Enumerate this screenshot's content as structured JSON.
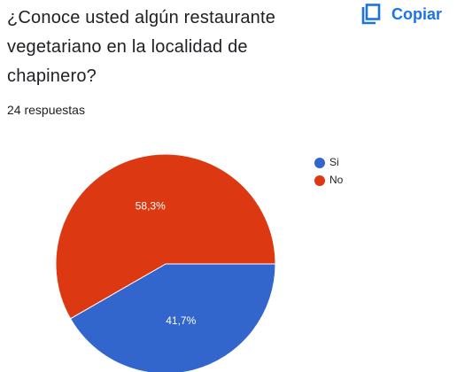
{
  "copy_button": "Copiar",
  "chart_data": {
    "type": "pie",
    "title": "¿Conoce usted algún restaurante vegetariano en la localidad de chapinero?",
    "subtitle": "24 respuestas",
    "categories": [
      "Si",
      "No"
    ],
    "values": [
      41.7,
      58.3
    ],
    "value_labels": [
      "41,7%",
      "58,3%"
    ],
    "colors": [
      "#3366cc",
      "#dc3912"
    ]
  }
}
